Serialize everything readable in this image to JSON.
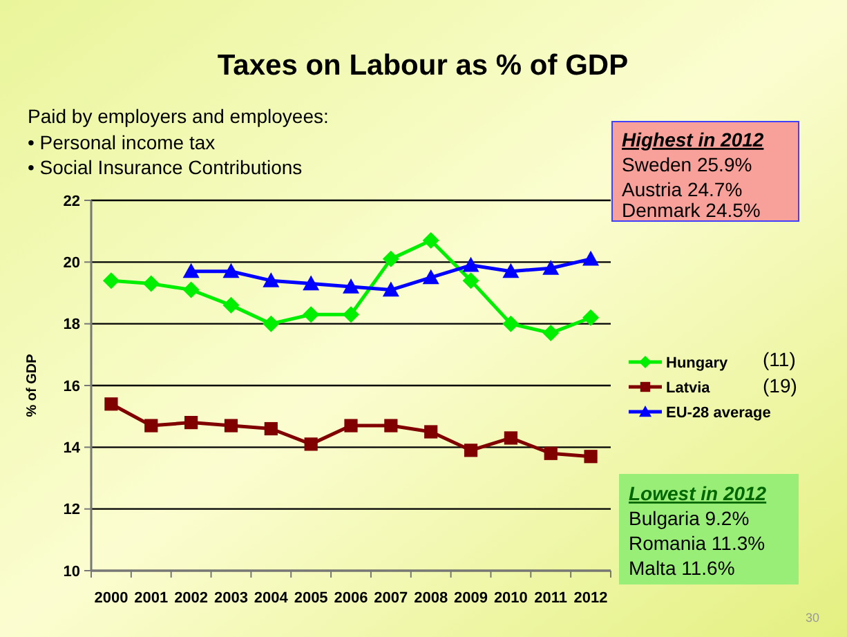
{
  "chart_data": {
    "type": "line",
    "title": "Taxes on Labour as % of GDP",
    "subtitle": "Paid by employers and employees:",
    "ylabel": "% of GDP",
    "categories": [
      "2000",
      "2001",
      "2002",
      "2003",
      "2004",
      "2005",
      "2006",
      "2007",
      "2008",
      "2009",
      "2010",
      "2011",
      "2012"
    ],
    "series": [
      {
        "name": "Hungary",
        "color": "#00ee00",
        "marker": "diamond",
        "values": [
          19.4,
          19.3,
          19.1,
          18.6,
          18.0,
          18.3,
          18.3,
          20.1,
          20.7,
          19.4,
          18.0,
          17.7,
          18.2
        ]
      },
      {
        "name": "Latvia",
        "color": "#800000",
        "marker": "square",
        "values": [
          15.4,
          14.7,
          14.8,
          14.7,
          14.6,
          14.1,
          14.7,
          14.7,
          14.5,
          13.9,
          14.3,
          13.8,
          13.7
        ]
      },
      {
        "name": "EU-28 average",
        "color": "#0000ff",
        "marker": "triangle",
        "values": [
          null,
          null,
          19.7,
          19.7,
          19.4,
          19.3,
          19.2,
          19.1,
          19.5,
          19.9,
          19.7,
          19.8,
          20.1
        ]
      }
    ],
    "ylim": [
      10,
      22
    ],
    "yticks": [
      10,
      12,
      14,
      16,
      18,
      20,
      22
    ],
    "grid": "y",
    "legend": "right",
    "annotations": [
      "• Personal income tax",
      "• Social Insurance Contributions",
      "Highest in 2012",
      "Sweden 25.9%",
      "Austria 24.7%",
      "Denmark 24.5%",
      "Lowest in 2012",
      "Bulgaria 9.2%",
      "Romania 11.3%",
      "Malta 11.6%",
      "(11)",
      "(19)",
      "30"
    ]
  }
}
